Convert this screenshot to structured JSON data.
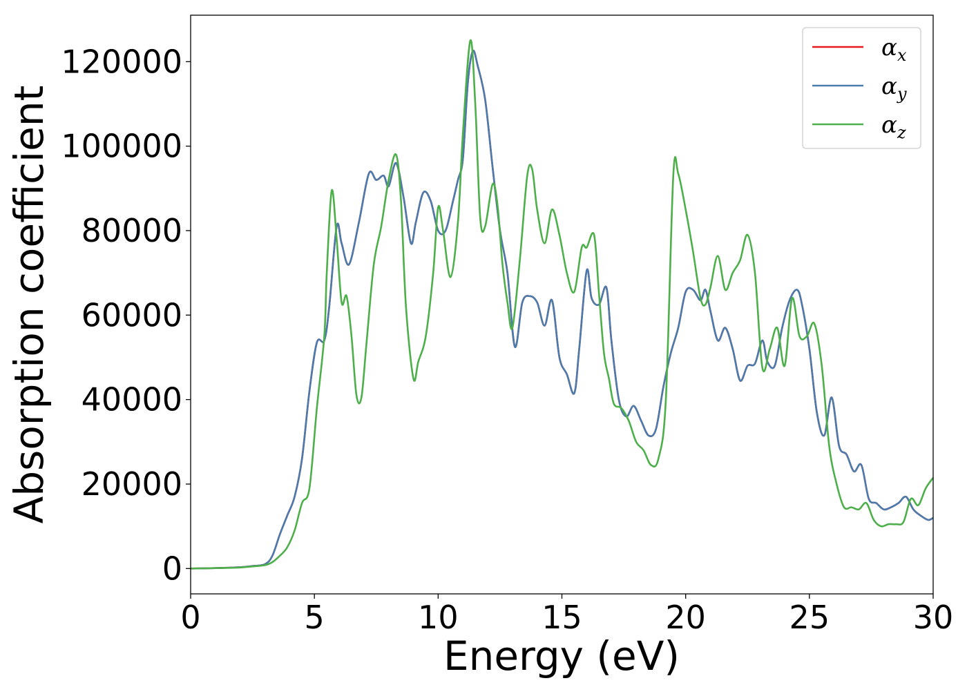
{
  "chart_data": {
    "type": "line",
    "xlabel": "Energy (eV)",
    "ylabel": "Absorption coefficient",
    "xlim": [
      0,
      30
    ],
    "ylim": [
      -6000,
      131000
    ],
    "xticks": [
      0,
      5,
      10,
      15,
      20,
      25,
      30
    ],
    "yticks": [
      0,
      20000,
      40000,
      60000,
      80000,
      100000,
      120000
    ],
    "xtick_labels": [
      "0",
      "5",
      "10",
      "15",
      "20",
      "25",
      "30"
    ],
    "ytick_labels": [
      "0",
      "20000",
      "40000",
      "60000",
      "80000",
      "100000",
      "120000"
    ],
    "grid": false,
    "legend_position": "top-right",
    "series": [
      {
        "name": "αx",
        "symbol": "α",
        "subscript": "x",
        "color": "#e41a1c",
        "x": [
          0,
          1,
          2,
          2.5,
          3,
          3.3,
          3.6,
          3.9,
          4.2,
          4.5,
          4.8,
          5.1,
          5.4,
          5.6,
          5.9,
          6.1,
          6.4,
          6.8,
          7.2,
          7.5,
          7.8,
          8.0,
          8.3,
          8.6,
          8.9,
          9.1,
          9.4,
          9.7,
          10.0,
          10.3,
          10.6,
          10.8,
          11.0,
          11.2,
          11.4,
          11.6,
          11.9,
          12.2,
          12.5,
          12.8,
          13.1,
          13.4,
          13.7,
          14.0,
          14.3,
          14.6,
          14.9,
          15.2,
          15.5,
          15.7,
          16.0,
          16.2,
          16.5,
          16.8,
          17.0,
          17.3,
          17.6,
          17.9,
          18.2,
          18.5,
          18.8,
          19.1,
          19.4,
          19.7,
          20.0,
          20.3,
          20.6,
          20.8,
          21.0,
          21.3,
          21.6,
          21.9,
          22.2,
          22.5,
          22.8,
          23.1,
          23.3,
          23.6,
          23.9,
          24.2,
          24.5,
          24.7,
          25.0,
          25.3,
          25.6,
          25.9,
          26.2,
          26.5,
          26.8,
          27.1,
          27.4,
          27.7,
          28.0,
          28.3,
          28.6,
          28.9,
          29.2,
          29.5,
          29.8,
          30
        ],
        "y": [
          0,
          100,
          300,
          600,
          1000,
          3000,
          8000,
          12500,
          17000,
          26000,
          42000,
          53500,
          54000,
          62000,
          81000,
          77000,
          72000,
          82000,
          93500,
          92000,
          93000,
          90500,
          96000,
          88000,
          77000,
          82000,
          89000,
          87000,
          80000,
          80000,
          87000,
          92000,
          97000,
          115000,
          122500,
          119000,
          111000,
          95000,
          80000,
          70000,
          52500,
          63000,
          64500,
          63000,
          57500,
          63500,
          50000,
          46000,
          41500,
          52000,
          70500,
          64000,
          62500,
          66500,
          54000,
          40000,
          36000,
          38500,
          35000,
          31500,
          33000,
          43000,
          51000,
          57000,
          65500,
          66000,
          63500,
          66000,
          61000,
          54000,
          57000,
          52000,
          44500,
          48000,
          48500,
          54000,
          49000,
          48000,
          57000,
          63500,
          66000,
          62500,
          52000,
          37000,
          31500,
          40500,
          29000,
          27000,
          23000,
          24500,
          16500,
          15500,
          14000,
          14500,
          15500,
          17000,
          14000,
          12500,
          11500,
          12000
        ],
        "note": "αx overlaps αy"
      },
      {
        "name": "αy",
        "symbol": "α",
        "subscript": "y",
        "color": "#4a7bad",
        "x": [
          0,
          1,
          2,
          2.5,
          3,
          3.3,
          3.6,
          3.9,
          4.2,
          4.5,
          4.8,
          5.1,
          5.4,
          5.6,
          5.9,
          6.1,
          6.4,
          6.8,
          7.2,
          7.5,
          7.8,
          8.0,
          8.3,
          8.6,
          8.9,
          9.1,
          9.4,
          9.7,
          10.0,
          10.3,
          10.6,
          10.8,
          11.0,
          11.2,
          11.4,
          11.6,
          11.9,
          12.2,
          12.5,
          12.8,
          13.1,
          13.4,
          13.7,
          14.0,
          14.3,
          14.6,
          14.9,
          15.2,
          15.5,
          15.7,
          16.0,
          16.2,
          16.5,
          16.8,
          17.0,
          17.3,
          17.6,
          17.9,
          18.2,
          18.5,
          18.8,
          19.1,
          19.4,
          19.7,
          20.0,
          20.3,
          20.6,
          20.8,
          21.0,
          21.3,
          21.6,
          21.9,
          22.2,
          22.5,
          22.8,
          23.1,
          23.3,
          23.6,
          23.9,
          24.2,
          24.5,
          24.7,
          25.0,
          25.3,
          25.6,
          25.9,
          26.2,
          26.5,
          26.8,
          27.1,
          27.4,
          27.7,
          28.0,
          28.3,
          28.6,
          28.9,
          29.2,
          29.5,
          29.8,
          30
        ],
        "y": [
          0,
          100,
          300,
          600,
          1000,
          3000,
          8000,
          12500,
          17000,
          26000,
          42000,
          53500,
          54000,
          62000,
          81000,
          77000,
          72000,
          82000,
          93500,
          92000,
          93000,
          90500,
          96000,
          88000,
          77000,
          82000,
          89000,
          87000,
          80000,
          80000,
          87000,
          92000,
          97000,
          115000,
          122500,
          119000,
          111000,
          95000,
          80000,
          70000,
          52500,
          63000,
          64500,
          63000,
          57500,
          63500,
          50000,
          46000,
          41500,
          52000,
          70500,
          64000,
          62500,
          66500,
          54000,
          40000,
          36000,
          38500,
          35000,
          31500,
          33000,
          43000,
          51000,
          57000,
          65500,
          66000,
          63500,
          66000,
          61000,
          54000,
          57000,
          52000,
          44500,
          48000,
          48500,
          54000,
          49000,
          48000,
          57000,
          63500,
          66000,
          62500,
          52000,
          37000,
          31500,
          40500,
          29000,
          27000,
          23000,
          24500,
          16500,
          15500,
          14000,
          14500,
          15500,
          17000,
          14000,
          12500,
          11500,
          12000
        ]
      },
      {
        "name": "αz",
        "symbol": "α",
        "subscript": "z",
        "color": "#4daf4a",
        "x": [
          0,
          1,
          2,
          2.5,
          3,
          3.3,
          3.6,
          3.9,
          4.2,
          4.5,
          4.8,
          5.1,
          5.4,
          5.5,
          5.7,
          5.9,
          6.1,
          6.3,
          6.5,
          6.7,
          6.9,
          7.1,
          7.4,
          7.7,
          8.0,
          8.3,
          8.5,
          8.7,
          9.0,
          9.2,
          9.5,
          9.8,
          10.0,
          10.2,
          10.5,
          10.8,
          11.0,
          11.3,
          11.5,
          11.7,
          11.9,
          12.2,
          12.4,
          12.6,
          12.8,
          13.0,
          13.3,
          13.6,
          13.8,
          14.0,
          14.3,
          14.6,
          14.9,
          15.2,
          15.5,
          15.8,
          16.0,
          16.3,
          16.5,
          16.7,
          16.9,
          17.1,
          17.4,
          17.7,
          18.0,
          18.3,
          18.6,
          18.9,
          19.2,
          19.5,
          19.7,
          20.0,
          20.3,
          20.6,
          20.8,
          21.0,
          21.3,
          21.6,
          21.9,
          22.2,
          22.5,
          22.8,
          23.1,
          23.4,
          23.7,
          24.0,
          24.3,
          24.6,
          24.9,
          25.2,
          25.5,
          25.8,
          26.1,
          26.4,
          26.7,
          27.0,
          27.3,
          27.6,
          27.9,
          28.2,
          28.5,
          28.8,
          29.1,
          29.4,
          29.7,
          30
        ],
        "y": [
          0,
          100,
          250,
          500,
          800,
          1500,
          3000,
          5000,
          9000,
          15500,
          19000,
          38000,
          55000,
          70000,
          89500,
          78000,
          63000,
          64500,
          55000,
          41000,
          40500,
          53000,
          72000,
          81000,
          92000,
          98000,
          87000,
          62000,
          45000,
          49000,
          55000,
          70000,
          85500,
          80000,
          69000,
          82000,
          103000,
          125000,
          110000,
          83000,
          81000,
          91000,
          86000,
          72000,
          63000,
          57000,
          73000,
          93000,
          94500,
          85000,
          77000,
          85000,
          79000,
          70000,
          65500,
          76000,
          76000,
          79000,
          65000,
          51000,
          45000,
          39000,
          38000,
          35000,
          30000,
          28000,
          24500,
          26000,
          40000,
          93000,
          93500,
          85000,
          75000,
          64000,
          62500,
          66500,
          74000,
          66000,
          70000,
          73000,
          79000,
          70000,
          47500,
          52000,
          57000,
          48000,
          64000,
          55000,
          55000,
          58000,
          48000,
          29000,
          20000,
          14500,
          14500,
          14000,
          15500,
          11500,
          10000,
          10500,
          10500,
          11000,
          16500,
          15000,
          19000,
          21500
        ]
      }
    ]
  }
}
